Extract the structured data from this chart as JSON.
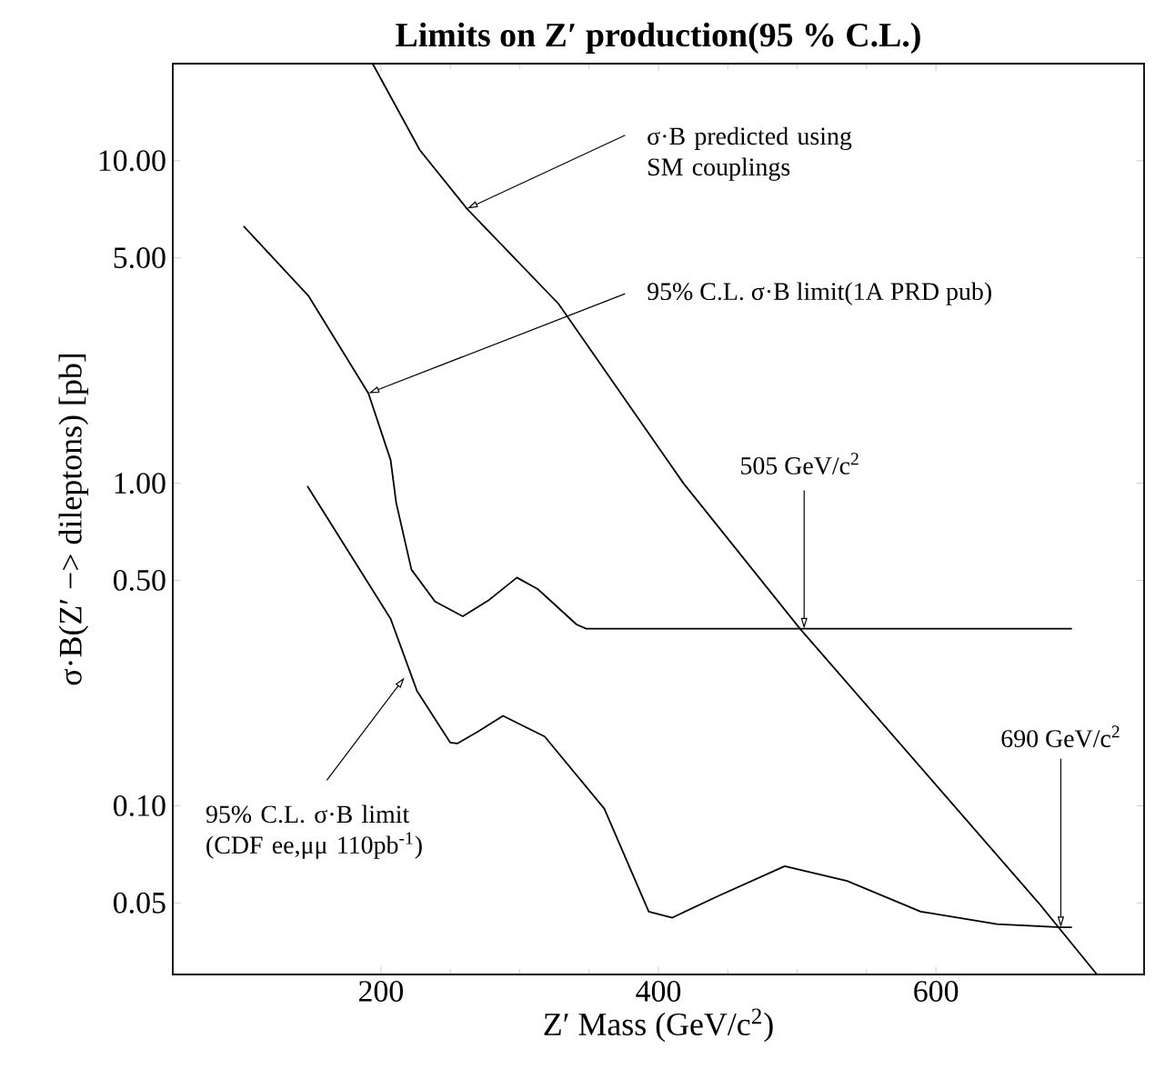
{
  "chart_data": {
    "type": "line",
    "title": "Limits on Z′ production(95 % C.L.)",
    "xlabel": "Z′ Mass      (GeV/c$^{2}$)",
    "ylabel": "σ·B(Z′ −> dileptons)    [pb]",
    "xlim": [
      50,
      750
    ],
    "ylim": [
      0.03,
      20
    ],
    "log": "y",
    "grid": false,
    "marker": "none",
    "line_style": "solid",
    "xticks": [
      200,
      400,
      600
    ],
    "yticks": [
      {
        "value": 0.05,
        "label": "0.05"
      },
      {
        "value": 0.1,
        "label": "0.10"
      },
      {
        "value": 0.5,
        "label": "0.50"
      },
      {
        "value": 1,
        "label": "1.00"
      },
      {
        "value": 5,
        "label": "5.00"
      },
      {
        "value": 10,
        "label": "10.00"
      }
    ],
    "series": [
      {
        "color": "#000000",
        "x": [
          194,
          228,
          262,
          328,
          418,
          502,
          674,
          716
        ],
        "values": [
          20,
          10.8,
          7.1,
          3.6,
          1.0,
          0.354,
          0.05,
          0.03
        ]
      },
      {
        "color": "#000000",
        "x": [
          101,
          148,
          191,
          207,
          211,
          222,
          239,
          259,
          278,
          298,
          313,
          341,
          348,
          505,
          698
        ],
        "values": [
          6.27,
          3.8,
          1.9,
          1.18,
          0.87,
          0.54,
          0.43,
          0.387,
          0.435,
          0.51,
          0.47,
          0.365,
          0.354,
          0.354,
          0.354
        ]
      },
      {
        "color": "#000000",
        "x": [
          147,
          174,
          207,
          226,
          250,
          255,
          270,
          288,
          318,
          361,
          393,
          410,
          443,
          491,
          536,
          589,
          644,
          690,
          698
        ],
        "values": [
          0.98,
          0.64,
          0.38,
          0.227,
          0.157,
          0.156,
          0.17,
          0.19,
          0.164,
          0.098,
          0.047,
          0.045,
          0.0525,
          0.065,
          0.0585,
          0.047,
          0.043,
          0.042,
          0.042
        ]
      }
    ],
    "annotations": [
      {
        "text": "σ·B predicted using SM couplings",
        "x": 262,
        "y": 7.1
      },
      {
        "text": "95% C.L. σ·B limit(1A PRD pub)",
        "x": 191,
        "y": 1.9
      },
      {
        "text": "505 GeV/c$^{2}$",
        "x": 505,
        "y": 0.354
      },
      {
        "text": "690 GeV/c$^{2}$",
        "x": 690,
        "y": 0.042
      },
      {
        "text": "95% C.L. σ·B limit (CDF ee,μμ 110pb$^{-1}$)",
        "x": 217,
        "y": 0.25
      }
    ]
  }
}
